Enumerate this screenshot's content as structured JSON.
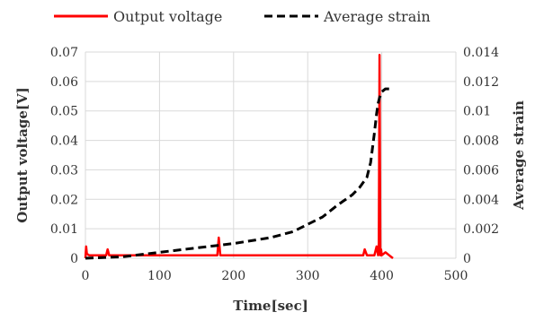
{
  "chart_data": {
    "type": "line",
    "title": "",
    "xlabel": "Time[sec]",
    "ylabel": "Output voltage[V]",
    "y2label": "Average strain",
    "xlim": [
      0,
      500
    ],
    "ylim": [
      0,
      0.07
    ],
    "y2lim": [
      0,
      0.014
    ],
    "xticks": [
      "0",
      "100",
      "200",
      "300",
      "400",
      "500"
    ],
    "yticks": [
      "0",
      "0.01",
      "0.02",
      "0.03",
      "0.04",
      "0.05",
      "0.06",
      "0.07"
    ],
    "y2ticks": [
      "0",
      "0.002",
      "0.004",
      "0.006",
      "0.008",
      "0.01",
      "0.012",
      "0.014"
    ],
    "grid": true,
    "legend_position": "top",
    "series": [
      {
        "name": "Output voltage",
        "axis": "left",
        "color": "#ff0000",
        "style": "solid",
        "x": [
          0,
          1,
          2,
          5,
          10,
          20,
          28,
          30,
          32,
          40,
          60,
          80,
          100,
          120,
          140,
          160,
          178,
          180,
          182,
          200,
          220,
          240,
          260,
          280,
          300,
          320,
          340,
          360,
          375,
          377,
          380,
          390,
          393,
          395,
          396,
          397,
          398,
          399,
          400,
          405,
          410,
          415
        ],
        "y": [
          0,
          0.004,
          0.0015,
          0.001,
          0.001,
          0.001,
          0.001,
          0.003,
          0.001,
          0.001,
          0.001,
          0.001,
          0.001,
          0.001,
          0.001,
          0.001,
          0.001,
          0.007,
          0.001,
          0.001,
          0.001,
          0.001,
          0.001,
          0.001,
          0.001,
          0.001,
          0.001,
          0.001,
          0.001,
          0.003,
          0.001,
          0.001,
          0.004,
          0.001,
          0.005,
          0.069,
          0.001,
          0.003,
          0.001,
          0.002,
          0.001,
          0
        ]
      },
      {
        "name": "Average strain",
        "axis": "right",
        "color": "#000000",
        "style": "dashed",
        "x": [
          0,
          50,
          100,
          150,
          200,
          250,
          280,
          300,
          320,
          340,
          360,
          370,
          380,
          385,
          390,
          393,
          395,
          397,
          400,
          405,
          410
        ],
        "y": [
          0,
          0.0001,
          0.0004,
          0.0007,
          0.001,
          0.0014,
          0.0018,
          0.0023,
          0.0028,
          0.0036,
          0.0043,
          0.0048,
          0.0055,
          0.0065,
          0.0085,
          0.0098,
          0.0105,
          0.0109,
          0.0113,
          0.0115,
          0.0115
        ]
      }
    ]
  }
}
